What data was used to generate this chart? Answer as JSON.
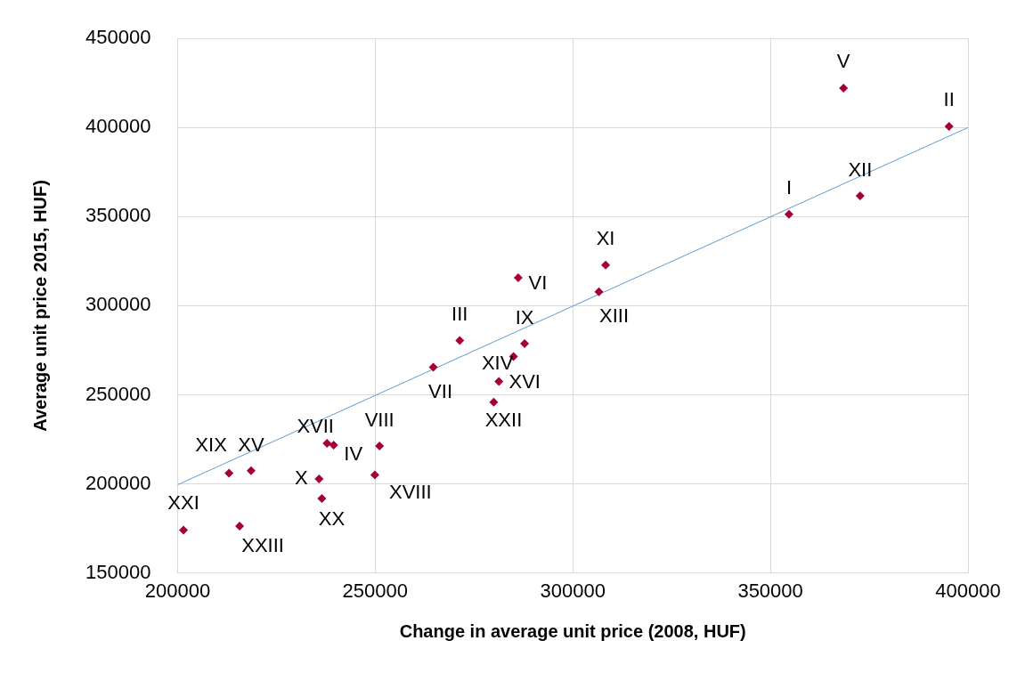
{
  "chart_data": {
    "type": "scatter",
    "xlabel": "Change in average unit price (2008, HUF)",
    "ylabel": "Average unit price 2015, HUF)",
    "xlim": [
      200000,
      400000
    ],
    "xticks": [
      200000,
      250000,
      300000,
      350000,
      400000
    ],
    "ylim": [
      150000,
      450000
    ],
    "yticks": [
      150000,
      200000,
      250000,
      300000,
      350000,
      400000,
      450000
    ],
    "grid": true,
    "legend": false,
    "marker": "diamond",
    "series": [
      {
        "color": "#a50034",
        "x": [
          201500,
          215700,
          213000,
          218600,
          235800,
          236500,
          237800,
          239500,
          251100,
          249900,
          264700,
          271400,
          285000,
          287800,
          281300,
          280000,
          286200,
          306600,
          308300,
          354700,
          372700,
          368500,
          395200
        ],
        "values": [
          174000,
          176300,
          206000,
          207400,
          202800,
          191800,
          222700,
          221700,
          221200,
          205000,
          265500,
          280500,
          271500,
          278700,
          257500,
          245900,
          315700,
          307800,
          322800,
          351300,
          361700,
          422100,
          400600
        ]
      },
      {
        "type": "line",
        "color": "#5b9bd5",
        "marker": "none",
        "line_style": "solid",
        "x": [
          200000,
          400000
        ],
        "values": [
          199500,
          400000
        ]
      }
    ],
    "annotations": [
      {
        "text": "XXI",
        "x": 201500,
        "y": 174000
      },
      {
        "text": "XXIII",
        "x": 215700,
        "y": 176300
      },
      {
        "text": "XIX",
        "x": 213000,
        "y": 206000
      },
      {
        "text": "XV",
        "x": 218600,
        "y": 207400
      },
      {
        "text": "X",
        "x": 235800,
        "y": 202800
      },
      {
        "text": "XX",
        "x": 236500,
        "y": 191800
      },
      {
        "text": "XVII",
        "x": 237800,
        "y": 222700
      },
      {
        "text": "IV",
        "x": 239500,
        "y": 221700
      },
      {
        "text": "VIII",
        "x": 251100,
        "y": 221200
      },
      {
        "text": "XVIII",
        "x": 249900,
        "y": 205000
      },
      {
        "text": "VII",
        "x": 264700,
        "y": 265500
      },
      {
        "text": "III",
        "x": 271400,
        "y": 280500
      },
      {
        "text": "XIV",
        "x": 285000,
        "y": 271500
      },
      {
        "text": "IX",
        "x": 287800,
        "y": 278700
      },
      {
        "text": "XVI",
        "x": 281300,
        "y": 257500
      },
      {
        "text": "XXII",
        "x": 280000,
        "y": 245900
      },
      {
        "text": "VI",
        "x": 286200,
        "y": 315700
      },
      {
        "text": "XIII",
        "x": 306600,
        "y": 307800
      },
      {
        "text": "XI",
        "x": 308300,
        "y": 322800
      },
      {
        "text": "I",
        "x": 354700,
        "y": 351300
      },
      {
        "text": "XII",
        "x": 372700,
        "y": 361700
      },
      {
        "text": "V",
        "x": 368500,
        "y": 422100
      },
      {
        "text": "II",
        "x": 395200,
        "y": 400600
      }
    ]
  }
}
